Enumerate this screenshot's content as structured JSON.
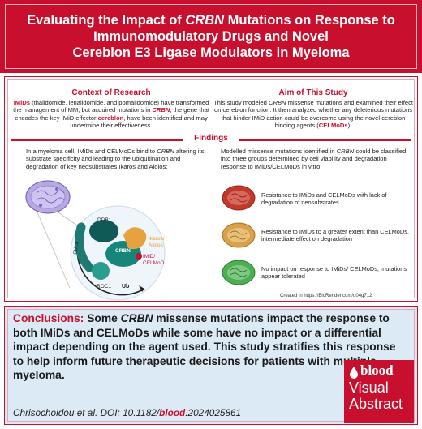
{
  "header": {
    "title_line1_pre": "Evaluating the Impact of ",
    "title_line1_em": "CRBN",
    "title_line1_post": " Mutations on Response to",
    "title_line2": "Immunomodulatory Drugs and Novel",
    "title_line3": "Cereblon E3 Ligase Modulators in Myeloma"
  },
  "context": {
    "title": "Context of Research",
    "t1": "IMiDs",
    "t2": " (thalidomide, lenalidomide, and pomalidomide) have transformed the management of MM, but acquired mutations in ",
    "t3": "CRBN",
    "t4": ", the gene that encodes the key IMiD effector ",
    "t5": "cereblon",
    "t6": ", have been identified and may undermine their effectiveness."
  },
  "aim": {
    "title": "Aim of This Study",
    "t1": "This study modeled ",
    "t2": "CRBN",
    "t3": " missense mutations and examined their effect on cereblon function. It then analyzed whether any deleterious mutations that hinder IMiD action could be overcome using the novel cereblon binding agents (",
    "t4": "CELMoDs",
    "t5": ")."
  },
  "findings": {
    "title": "Findings",
    "left_pre": "In a myeloma cell, IMiDs and CELMoDs bind to ",
    "left_em": "CRBN",
    "left_post": " altering its substrate specificity and leading to the ubiquitination and degradation of key neosubstrates Ikaros and Aiolos:",
    "right_pre": "Modelled missense mutations identified in ",
    "right_em": "CRBN",
    "right_post": " could be classified into three groups determined by cell viability and degradation response to IMiDs/CELMoDs in vitro:",
    "groups": [
      {
        "text": "Resistance to IMiDs and CELMoDs with lack of degradation of neosubstrates",
        "color": "#c0392b"
      },
      {
        "text": "Resistance to IMiDs to a greater extent than CELMoDs, intermediate effect on degradation",
        "color": "#d9a24a"
      },
      {
        "text": "No impact on response to IMiDs/ CELMoDs, mutations appear tolerated",
        "color": "#4caf50"
      }
    ],
    "credit": "Created in https://BioRender.com/u04g712"
  },
  "diagram": {
    "ddb1": "DDB1",
    "cul4": "CUL4",
    "crbn": "CRBN",
    "roc1": "ROC1",
    "ikaros_aiolos": "Ikaros/ Aiolos",
    "imid_celmod": "IMiD/ CELMoD",
    "ub": "Ub"
  },
  "conclusions": {
    "label": "Conclusions:",
    "t1": " Some ",
    "t2": "CRBN",
    "t3": " missense mutations impact the response to both IMiDs and CELMoDs while some have no impact or a differential impact depending on the agent used. This study stratifies this response to help inform future therapeutic decisions for patients with multiple myeloma."
  },
  "citation": {
    "pre": "Chrisochoidou et al. DOI: 10.1182/",
    "blood": "blood",
    "post": ".2024025861"
  },
  "logo": {
    "word": "blood",
    "visual": "Visual",
    "abstract": "Abstract"
  },
  "colors": {
    "brand_red": "#c8102e",
    "conclusion_bg": "#dceaf5"
  }
}
